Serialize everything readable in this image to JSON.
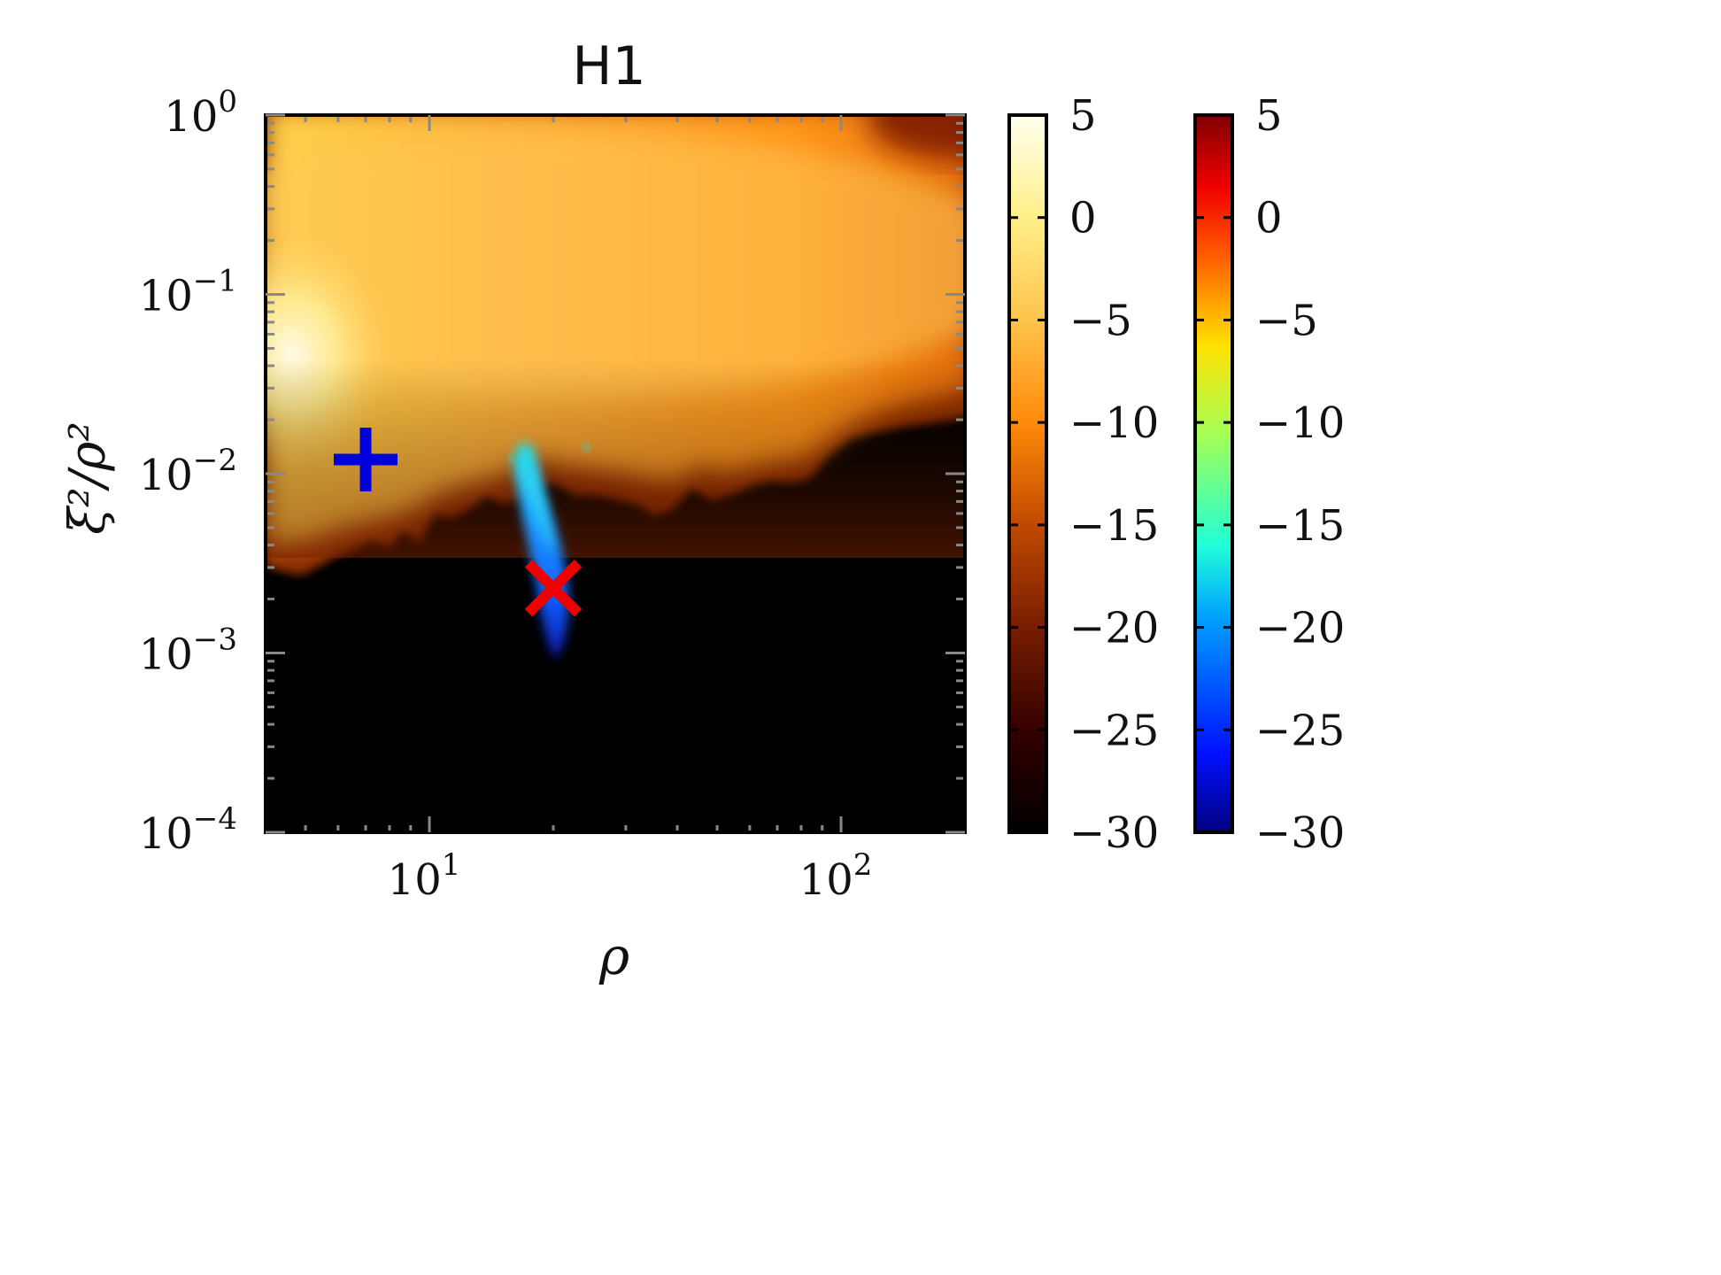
{
  "chart_data": {
    "type": "heatmap",
    "title": "H1",
    "xlabel": "ρ",
    "ylabel": "ξ²/ρ²",
    "x_scale": "log",
    "y_scale": "log",
    "xlim": [
      4,
      200
    ],
    "ylim": [
      0.0001,
      1
    ],
    "x_ticks": [
      {
        "value": 10,
        "base": "10",
        "exp": "1"
      },
      {
        "value": 100,
        "base": "10",
        "exp": "2"
      }
    ],
    "y_ticks": [
      {
        "value": 1,
        "base": "10",
        "exp": "0"
      },
      {
        "value": 0.1,
        "base": "10",
        "exp": "−1"
      },
      {
        "value": 0.01,
        "base": "10",
        "exp": "−2"
      },
      {
        "value": 0.001,
        "base": "10",
        "exp": "−3"
      },
      {
        "value": 0.0001,
        "base": "10",
        "exp": "−4"
      }
    ],
    "grid": false,
    "colorbars": [
      {
        "name": "",
        "colormap": "afmhot",
        "range": [
          -30,
          5
        ],
        "ticks": [
          "5",
          "0",
          "−5",
          "−10",
          "−15",
          "−20",
          "−25",
          "−30"
        ],
        "tick_values": [
          5,
          0,
          -5,
          -10,
          -15,
          -20,
          -25,
          -30
        ],
        "colors": [
          "#000000",
          "#330000",
          "#7a1e00",
          "#c24a00",
          "#ff8a0a",
          "#ffc24a",
          "#fff08a",
          "#ffffee"
        ]
      },
      {
        "name": "",
        "colormap": "jet",
        "range": [
          -30,
          5
        ],
        "ticks": [
          "5",
          "0",
          "−5",
          "−10",
          "−15",
          "−20",
          "−25",
          "−30"
        ],
        "tick_values": [
          5,
          0,
          -5,
          -10,
          -15,
          -20,
          -25,
          -30
        ],
        "colors": [
          "#00007f",
          "#0010ff",
          "#00a0ff",
          "#20ffd8",
          "#a0ff58",
          "#ffe000",
          "#ff6000",
          "#f00000",
          "#800000"
        ]
      }
    ],
    "markers": [
      {
        "symbol": "+",
        "x": 7,
        "y": 0.012,
        "color": "#0000dd"
      },
      {
        "symbol": "x",
        "x": 20,
        "y": 0.0023,
        "color": "#ee0000"
      }
    ]
  }
}
